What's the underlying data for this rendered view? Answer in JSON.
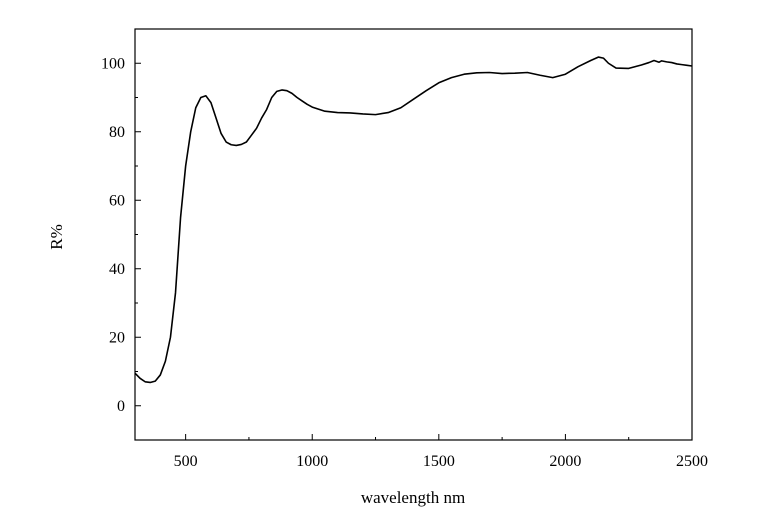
{
  "chart_data": {
    "type": "line",
    "title": "",
    "xlabel": "wavelength nm",
    "ylabel": "R%",
    "xlim": [
      300,
      2500
    ],
    "ylim": [
      -10,
      110
    ],
    "xticks": [
      500,
      1000,
      1500,
      2000,
      2500
    ],
    "yticks": [
      0,
      20,
      40,
      60,
      80,
      100
    ],
    "grid": false,
    "legend": "none",
    "line_color": "#000000",
    "series": [
      {
        "x": [
          300,
          320,
          340,
          360,
          380,
          400,
          420,
          440,
          460,
          480,
          500,
          520,
          540,
          560,
          580,
          600,
          620,
          640,
          660,
          680,
          700,
          720,
          740,
          760,
          780,
          800,
          820,
          840,
          860,
          880,
          900,
          920,
          940,
          960,
          980,
          1000,
          1050,
          1100,
          1150,
          1200,
          1250,
          1300,
          1350,
          1400,
          1450,
          1500,
          1550,
          1600,
          1650,
          1700,
          1750,
          1800,
          1850,
          1900,
          1950,
          2000,
          2050,
          2100,
          2130,
          2150,
          2170,
          2200,
          2250,
          2300,
          2330,
          2350,
          2370,
          2380,
          2400,
          2420,
          2440,
          2460,
          2480,
          2500
        ],
        "y": [
          9.5,
          8,
          7,
          6.8,
          7.2,
          9,
          13,
          20,
          33,
          55,
          70,
          80,
          87,
          90,
          90.5,
          88.5,
          84,
          79.5,
          77,
          76.2,
          76,
          76.3,
          77,
          79,
          81,
          84,
          86.5,
          90,
          91.8,
          92.2,
          92,
          91.2,
          90,
          89,
          88,
          87.2,
          86,
          85.6,
          85.5,
          85.2,
          85,
          85.6,
          87,
          89.5,
          92,
          94.3,
          95.8,
          96.8,
          97.2,
          97.3,
          97,
          97.1,
          97.3,
          96.5,
          95.8,
          96.8,
          99,
          100.8,
          101.8,
          101.5,
          100,
          98.6,
          98.5,
          99.5,
          100.2,
          100.8,
          100.3,
          100.7,
          100.4,
          100.2,
          99.8,
          99.6,
          99.4,
          99.2
        ]
      }
    ]
  }
}
